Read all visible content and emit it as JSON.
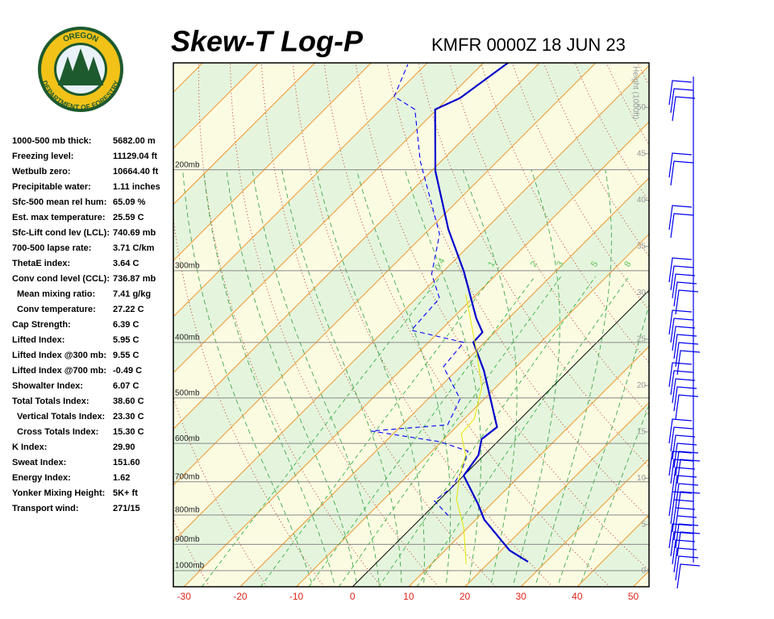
{
  "chart_data": {
    "type": "skewt",
    "title": "Skew-T Log-P",
    "subtitle": "KMFR 0000Z 18 JUN 23",
    "xlim": [
      -31.9,
      52.8
    ],
    "xticks": [
      -30,
      -20,
      -10,
      0,
      10,
      20,
      30,
      40,
      50
    ],
    "ylim": [
      1067,
      130.2
    ],
    "ylog": true,
    "yticks": [
      {
        "value": 200,
        "label": "200mb"
      },
      {
        "value": 300,
        "label": "300mb"
      },
      {
        "value": 400,
        "label": "400mb"
      },
      {
        "value": 500,
        "label": "500mb"
      },
      {
        "value": 600,
        "label": "600mb"
      },
      {
        "value": 700,
        "label": "700mb"
      },
      {
        "value": 800,
        "label": "800mb"
      },
      {
        "value": 900,
        "label": "900mb"
      },
      {
        "value": 1000,
        "label": "1000mb"
      }
    ],
    "y2label": "Height (1000ft)",
    "y2lim": [
      -1.7,
      54.8
    ],
    "y2ticks": [
      0,
      5,
      10,
      15,
      20,
      25,
      30,
      35,
      40,
      45,
      50
    ],
    "mixing_ratios": [
      0.4,
      1,
      2,
      3,
      5,
      8
    ],
    "series": [
      {
        "color": "#0000cc",
        "line_style": "solid",
        "y": [
          965,
          922,
          815,
          764,
          683,
          629,
          590,
          562,
          448,
          400,
          384,
          363,
          301,
          254,
          201,
          157,
          150,
          130
        ],
        "x": [
          26.8,
          21.5,
          11.5,
          7.5,
          0,
          -1.0,
          -3.3,
          -2.7,
          -15.1,
          -22.0,
          -22.2,
          -25.8,
          -36.3,
          -46.6,
          -59.3,
          -70.3,
          -67.9,
          -65.6
        ]
      },
      {
        "color": "#0000ff",
        "line_style": "dashed",
        "y": [
          802,
          756,
          717,
          672,
          619,
          596,
          571,
          557,
          502,
          441,
          400,
          381,
          335,
          304,
          259,
          193,
          157,
          149,
          131
        ],
        "x": [
          4.4,
          -0.7,
          0,
          -1.1,
          -3.6,
          -10.3,
          -24.4,
          -11.9,
          -14.3,
          -23.0,
          -23.7,
          -35.2,
          -35.9,
          -41.6,
          -47.3,
          -63.8,
          -73.9,
          -79.9,
          -83.2
        ]
      },
      {
        "color": "#e6e600",
        "line_style": "solid",
        "y": [
          974,
          842,
          752,
          683,
          629,
          577,
          544,
          478,
          407,
          330
        ],
        "x": [
          16.2,
          9.3,
          3.0,
          -0.7,
          -3.3,
          -7.9,
          -8.2,
          -12.6,
          -20.8,
          -31.9
        ]
      }
    ]
  },
  "logo": {
    "top": "OREGON",
    "bottom": "DEPARTMENT OF FORESTRY"
  },
  "indices": [
    [
      "1000-500 mb thick:",
      "5682.00 m"
    ],
    [
      "Freezing level:",
      "11129.04 ft"
    ],
    [
      "Wetbulb zero:",
      "10664.40 ft"
    ],
    [
      "Precipitable water:",
      "1.11 inches"
    ],
    [
      "Sfc-500 mean rel hum:",
      "65.09 %"
    ],
    [
      "Est. max temperature:",
      "25.59 C"
    ],
    [
      "Sfc-Lift cond lev (LCL):",
      "740.69 mb"
    ],
    [
      "700-500 lapse rate:",
      "3.71 C/km"
    ],
    [
      "ThetaE index:",
      "3.64 C"
    ],
    [
      "Conv cond level (CCL):",
      "736.87 mb"
    ],
    [
      "Mean mixing ratio:",
      "7.41 g/kg"
    ],
    [
      "Conv temperature:",
      "27.22 C"
    ],
    [
      "Cap Strength:",
      "6.39 C"
    ],
    [
      "Lifted Index:",
      "5.95 C"
    ],
    [
      "Lifted Index @300 mb:",
      "9.55 C"
    ],
    [
      "Lifted Index @700 mb:",
      "-0.49 C"
    ],
    [
      "Showalter Index:",
      "6.07 C"
    ],
    [
      "Total Totals Index:",
      "38.60 C"
    ],
    [
      "Vertical Totals Index:",
      "23.30 C"
    ],
    [
      "Cross Totals Index:",
      "15.30 C"
    ],
    [
      "K Index:",
      "29.90"
    ],
    [
      "Sweat Index:",
      "151.60"
    ],
    [
      "Energy Index:",
      "1.62"
    ],
    [
      "Yonker Mixing Height:",
      "5K+ ft"
    ],
    [
      "Transport wind:",
      "271/15"
    ]
  ]
}
